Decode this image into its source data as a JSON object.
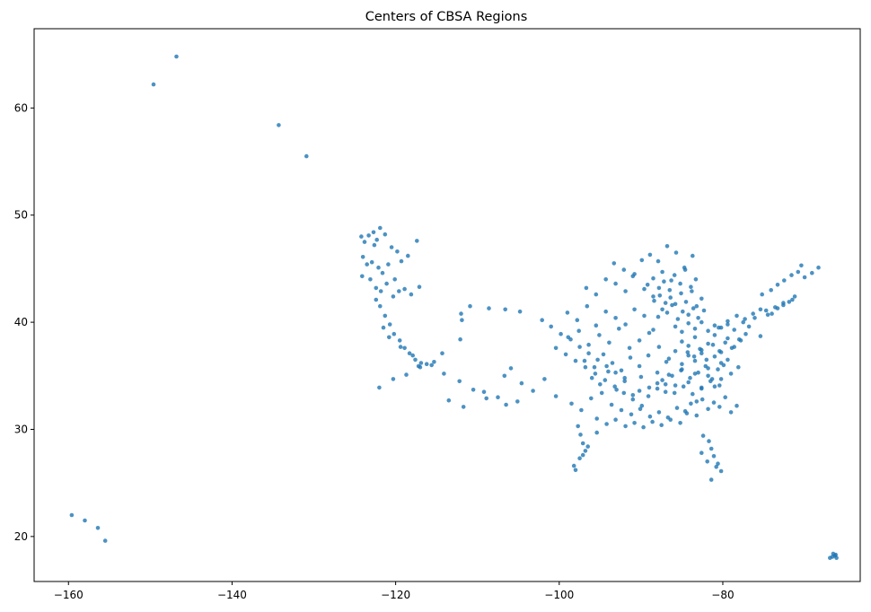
{
  "chart_data": {
    "type": "scatter",
    "title": "Centers of CBSA Regions",
    "xlabel": "",
    "ylabel": "",
    "xlim": [
      -164.2,
      -63.2
    ],
    "ylim": [
      15.8,
      67.4
    ],
    "xticks": [
      -160,
      -140,
      -120,
      -100,
      -80
    ],
    "yticks": [
      20,
      30,
      40,
      50,
      60
    ],
    "grid": false,
    "point_color": "#1f77b4",
    "point_opacity": 0.8,
    "series": [
      {
        "x": [
          -159.6,
          -158.0,
          -156.4,
          -155.5,
          -149.6,
          -146.8,
          -134.3,
          -130.9,
          -66.6,
          -66.3,
          -66.1,
          -66.5,
          -66.9,
          -66.2,
          -124.2,
          -123.8,
          -123.3,
          -122.6,
          -122.3,
          -122.7,
          -121.9,
          -121.3,
          -120.5,
          -119.8,
          -124.0,
          -123.5,
          -122.9,
          -122.1,
          -121.6,
          -120.9,
          -120.1,
          -119.3,
          -118.5,
          -117.4,
          -124.1,
          -123.1,
          -122.4,
          -121.8,
          -121.1,
          -120.3,
          -119.6,
          -118.9,
          -118.1,
          -117.1,
          -122.4,
          -121.9,
          -121.3,
          -120.7,
          -120.2,
          -119.5,
          -118.9,
          -118.3,
          -117.6,
          -117.2,
          -116.9,
          -115.6,
          -114.3,
          -112.1,
          -111.9,
          -112.0,
          -110.9,
          -108.6,
          -106.6,
          -104.8,
          -121.5,
          -120.8,
          -119.4,
          -117.9,
          -116.2,
          -114.1,
          -112.2,
          -110.5,
          -108.9,
          -106.5,
          -122.0,
          -120.3,
          -118.7,
          -117.0,
          -115.3,
          -113.5,
          -111.7,
          -109.2,
          -107.5,
          -105.1,
          -106.7,
          -105.9,
          -104.6,
          -103.2,
          -101.8,
          -100.4,
          -98.5,
          -97.3,
          -96.1,
          -94.8,
          -102.1,
          -101.0,
          -99.8,
          -98.6,
          -97.5,
          -96.4,
          -95.3,
          -94.2,
          -93.1,
          -92.0,
          -100.4,
          -99.2,
          -98.0,
          -96.8,
          -95.6,
          -94.4,
          -93.2,
          -92.1,
          -91.0,
          -89.9,
          -97.7,
          -97.4,
          -97.1,
          -96.8,
          -97.5,
          -98.2,
          -98.0,
          -97.1,
          -96.5,
          -95.4,
          -95.4,
          -94.2,
          -93.1,
          -91.9,
          -90.8,
          -89.7,
          -88.6,
          -87.5,
          -86.4,
          -85.2,
          -93.6,
          -92.4,
          -91.2,
          -90.1,
          -88.9,
          -87.8,
          -86.7,
          -85.6,
          -84.4,
          -83.2,
          -90.2,
          -89.1,
          -88.0,
          -87.0,
          -85.9,
          -84.8,
          -83.7,
          -82.6,
          -81.5,
          -80.4,
          -86.2,
          -85.1,
          -84.0,
          -83.0,
          -82.1,
          -81.3,
          -80.6,
          -79.9,
          -79.0,
          -78.1,
          -82.4,
          -81.7,
          -81.4,
          -81.1,
          -80.6,
          -80.2,
          -81.9,
          -82.6,
          -81.4,
          -80.8,
          -84.3,
          -83.5,
          -82.8,
          -82.0,
          -81.2,
          -80.4,
          -79.7,
          -78.9,
          -78.0,
          -77.2,
          -80.5,
          -79.4,
          -78.3,
          -77.3,
          -76.3,
          -75.4,
          -74.5,
          -73.6,
          -72.6,
          -71.5,
          -75.2,
          -74.1,
          -73.3,
          -72.5,
          -71.6,
          -70.8,
          -70.0,
          -69.1,
          -68.3,
          -70.4,
          -87.9,
          -87.4,
          -86.8,
          -86.2,
          -85.5,
          -84.9,
          -84.2,
          -83.6,
          -83.0,
          -82.3,
          -88.4,
          -87.7,
          -87.0,
          -86.4,
          -85.8,
          -85.1,
          -84.5,
          -83.8,
          -83.2,
          -82.6,
          -89.2,
          -88.5,
          -87.8,
          -87.2,
          -86.5,
          -85.9,
          -85.2,
          -84.6,
          -83.9,
          -83.3,
          -93.3,
          -92.1,
          -91.0,
          -89.9,
          -88.9,
          -87.9,
          -86.8,
          -85.7,
          -84.7,
          -83.7,
          -96.7,
          -95.5,
          -94.3,
          -93.1,
          -91.9,
          -90.8,
          -89.6,
          -88.5,
          -87.4,
          -86.3,
          -99.0,
          -97.8,
          -96.6,
          -95.5,
          -94.3,
          -93.1,
          -91.9,
          -90.8,
          -89.6,
          -88.5,
          -98.9,
          -97.6,
          -96.4,
          -95.1,
          -93.9,
          -92.7,
          -91.4,
          -90.2,
          -89.0,
          -87.8,
          -96.9,
          -95.7,
          -94.6,
          -93.5,
          -92.4,
          -91.3,
          -90.2,
          -89.1,
          -88.0,
          -86.9,
          -96.0,
          -95.0,
          -94.0,
          -93.0,
          -92.0,
          -91.0,
          -90.0,
          -89.0,
          -88.0,
          -87.0,
          -85.0,
          -84.2,
          -83.4,
          -82.6,
          -81.8,
          -81.0,
          -80.2,
          -79.4,
          -78.6,
          -77.8,
          -85.8,
          -85.0,
          -84.2,
          -83.4,
          -82.6,
          -81.8,
          -81.0,
          -80.2,
          -79.4,
          -78.6,
          -86.6,
          -85.8,
          -85.0,
          -84.2,
          -83.4,
          -82.6,
          -81.8,
          -81.0,
          -80.2,
          -79.4,
          -87.4,
          -86.6,
          -85.8,
          -85.0,
          -84.2,
          -83.4,
          -82.6,
          -81.8,
          -81.0,
          -80.2,
          -84.6,
          -83.9,
          -83.2,
          -82.5,
          -81.8,
          -81.1,
          -80.4,
          -79.7,
          -79.0,
          -78.3,
          -77.5,
          -76.8,
          -76.1,
          -75.4,
          -74.7,
          -74.0,
          -73.3,
          -72.6,
          -71.9,
          -71.2
        ],
        "y": [
          22.0,
          21.5,
          20.8,
          19.6,
          62.2,
          64.8,
          58.4,
          55.5,
          18.1,
          18.2,
          18.0,
          18.4,
          18.0,
          18.3,
          48.0,
          47.5,
          48.1,
          47.2,
          47.7,
          48.4,
          48.8,
          48.2,
          47.0,
          46.6,
          46.1,
          45.4,
          45.6,
          45.1,
          44.6,
          45.4,
          44.0,
          45.7,
          46.2,
          47.6,
          44.3,
          44.0,
          43.2,
          42.9,
          43.6,
          42.4,
          42.9,
          43.1,
          42.6,
          43.3,
          42.1,
          41.5,
          40.6,
          39.8,
          38.9,
          38.3,
          37.6,
          37.1,
          36.5,
          35.9,
          36.2,
          36.0,
          37.1,
          38.4,
          40.2,
          40.8,
          41.5,
          41.3,
          41.2,
          41.0,
          39.5,
          38.6,
          37.7,
          36.9,
          36.1,
          35.2,
          34.5,
          33.7,
          32.9,
          32.3,
          33.9,
          34.7,
          35.1,
          35.8,
          36.3,
          32.7,
          32.1,
          33.5,
          33.0,
          32.6,
          35.0,
          35.7,
          34.3,
          33.6,
          34.7,
          33.1,
          32.4,
          31.8,
          32.9,
          33.4,
          40.2,
          39.6,
          38.9,
          38.4,
          37.7,
          37.1,
          36.5,
          35.9,
          35.3,
          34.8,
          37.6,
          37.0,
          36.4,
          35.8,
          35.2,
          34.6,
          34.0,
          33.4,
          32.8,
          32.2,
          30.3,
          29.5,
          28.7,
          28.0,
          27.3,
          26.6,
          26.2,
          27.6,
          28.4,
          29.7,
          31.0,
          30.5,
          30.9,
          30.3,
          30.6,
          30.2,
          30.7,
          30.4,
          30.9,
          30.6,
          32.3,
          31.8,
          31.4,
          31.9,
          31.2,
          31.6,
          31.1,
          32.0,
          31.5,
          32.6,
          33.6,
          33.1,
          33.8,
          34.2,
          33.4,
          34.0,
          33.3,
          33.9,
          34.5,
          34.1,
          35.0,
          35.5,
          34.8,
          35.3,
          35.9,
          34.7,
          35.6,
          36.0,
          35.2,
          35.8,
          29.4,
          28.9,
          28.2,
          27.5,
          26.8,
          26.1,
          27.0,
          27.8,
          25.3,
          26.5,
          37.2,
          36.8,
          37.5,
          36.5,
          37.9,
          37.3,
          38.1,
          37.6,
          38.4,
          38.9,
          39.5,
          40.1,
          40.6,
          40.3,
          40.8,
          41.2,
          40.7,
          41.4,
          41.8,
          42.1,
          42.6,
          43.0,
          43.5,
          43.9,
          44.4,
          44.7,
          44.2,
          44.6,
          45.1,
          45.3,
          40.5,
          41.2,
          40.9,
          41.6,
          40.3,
          41.0,
          40.7,
          41.3,
          40.4,
          41.1,
          42.0,
          42.5,
          41.8,
          42.3,
          41.7,
          42.7,
          41.9,
          42.9,
          41.5,
          42.2,
          43.5,
          44.1,
          43.2,
          43.8,
          43.0,
          44.4,
          43.6,
          44.9,
          43.3,
          44.0,
          45.5,
          44.9,
          44.3,
          45.8,
          46.3,
          45.7,
          47.1,
          46.5,
          45.1,
          46.2,
          43.2,
          42.6,
          44.0,
          43.6,
          42.9,
          44.5,
          43.1,
          42.4,
          44.7,
          43.9,
          40.9,
          40.2,
          41.5,
          39.7,
          41.0,
          40.4,
          39.8,
          41.2,
          40.6,
          39.3,
          38.6,
          39.2,
          37.9,
          38.8,
          38.1,
          39.4,
          37.6,
          38.3,
          39.0,
          37.7,
          36.4,
          35.8,
          37.0,
          36.2,
          35.5,
          36.7,
          35.9,
          36.9,
          35.3,
          36.3,
          34.8,
          34.2,
          35.4,
          33.7,
          34.5,
          33.2,
          34.9,
          33.9,
          34.3,
          33.5,
          38.2,
          37.8,
          38.6,
          37.4,
          38.0,
          38.8,
          37.2,
          38.5,
          37.7,
          38.3,
          39.6,
          39.1,
          39.9,
          39.4,
          40.0,
          39.2,
          39.7,
          39.5,
          39.8,
          39.3,
          36.6,
          37.3,
          36.1,
          36.9,
          36.4,
          37.1,
          35.7,
          36.8,
          36.2,
          36.5,
          34.6,
          35.1,
          34.1,
          35.6,
          34.4,
          35.2,
          33.8,
          35.0,
          34.0,
          34.7,
          31.7,
          32.4,
          31.3,
          32.8,
          31.9,
          32.5,
          32.1,
          33.0,
          31.6,
          32.2,
          40.0,
          39.6,
          40.4,
          38.7,
          41.1,
          40.8,
          41.3,
          41.6,
          41.9,
          42.4
        ]
      }
    ]
  }
}
